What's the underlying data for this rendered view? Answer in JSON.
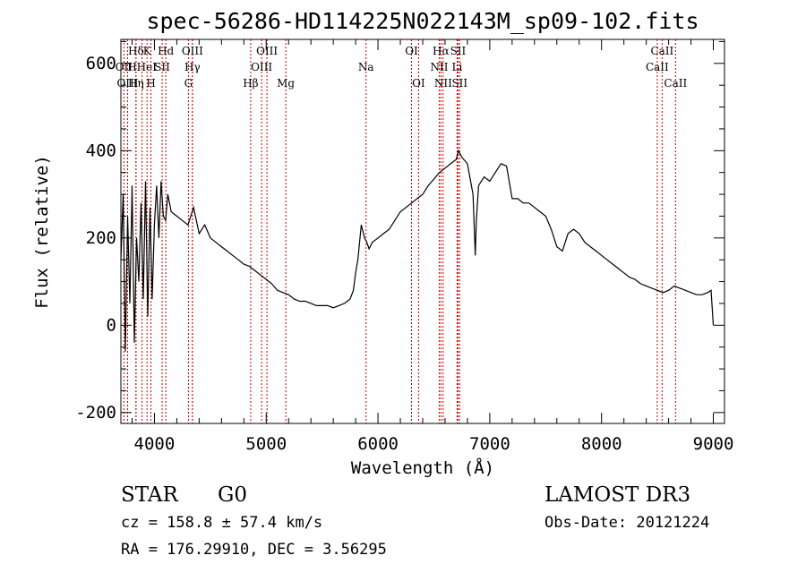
{
  "chart_data": {
    "type": "line",
    "title": "spec-56286-HD114225N022143M_sp09-102.fits",
    "xlabel": "Wavelength (Å)",
    "ylabel": "Flux (relative)",
    "xlim": [
      3700,
      9100
    ],
    "ylim": [
      -225,
      655
    ],
    "xticks": [
      4000,
      5000,
      6000,
      7000,
      8000,
      9000
    ],
    "yticks": [
      -200,
      0,
      200,
      400,
      600
    ],
    "grid": false,
    "series": [
      {
        "x": [
          3700,
          3720,
          3740,
          3760,
          3780,
          3800,
          3820,
          3840,
          3860,
          3880,
          3900,
          3920,
          3940,
          3960,
          3980,
          4000,
          4020,
          4040,
          4060,
          4080,
          4100,
          4120,
          4150,
          4200,
          4250,
          4300,
          4350,
          4400,
          4450,
          4500,
          4550,
          4600,
          4650,
          4700,
          4750,
          4800,
          4850,
          4900,
          4950,
          5000,
          5050,
          5100,
          5150,
          5200,
          5250,
          5300,
          5350,
          5400,
          5450,
          5500,
          5550,
          5600,
          5650,
          5700,
          5750,
          5780,
          5800,
          5820,
          5850,
          5880,
          5900,
          5920,
          5950,
          6000,
          6050,
          6100,
          6150,
          6200,
          6250,
          6300,
          6350,
          6400,
          6450,
          6500,
          6550,
          6600,
          6650,
          6700,
          6720,
          6750,
          6800,
          6850,
          6870,
          6880,
          6900,
          6950,
          7000,
          7050,
          7100,
          7150,
          7200,
          7250,
          7300,
          7350,
          7400,
          7450,
          7500,
          7550,
          7600,
          7650,
          7700,
          7750,
          7800,
          7850,
          7900,
          7950,
          8000,
          8050,
          8100,
          8150,
          8200,
          8250,
          8300,
          8350,
          8400,
          8450,
          8500,
          8550,
          8600,
          8650,
          8700,
          8750,
          8800,
          8850,
          8900,
          8950,
          8980,
          9000
        ],
        "y": [
          150,
          300,
          -60,
          250,
          50,
          320,
          -40,
          200,
          100,
          280,
          60,
          330,
          20,
          270,
          60,
          230,
          320,
          200,
          330,
          250,
          240,
          300,
          260,
          250,
          240,
          230,
          270,
          210,
          230,
          200,
          190,
          180,
          170,
          160,
          150,
          140,
          135,
          125,
          115,
          105,
          95,
          80,
          75,
          70,
          60,
          55,
          55,
          50,
          45,
          45,
          45,
          40,
          45,
          50,
          60,
          80,
          120,
          150,
          230,
          200,
          190,
          175,
          190,
          200,
          210,
          220,
          240,
          260,
          270,
          280,
          290,
          300,
          320,
          335,
          350,
          360,
          370,
          380,
          400,
          385,
          370,
          300,
          160,
          240,
          320,
          340,
          330,
          350,
          370,
          365,
          290,
          290,
          280,
          280,
          270,
          260,
          250,
          220,
          180,
          170,
          210,
          220,
          210,
          190,
          180,
          170,
          160,
          150,
          140,
          130,
          120,
          110,
          105,
          95,
          90,
          85,
          80,
          75,
          80,
          90,
          85,
          80,
          75,
          70,
          70,
          75,
          80,
          0
        ]
      }
    ],
    "line_markers": [
      {
        "label": "Hδ",
        "wavelength": 3835,
        "row": 0
      },
      {
        "label": "OII",
        "wavelength": 3727,
        "row": 1
      },
      {
        "label": "OIII",
        "wavelength": 3760,
        "row": 2
      },
      {
        "label": "HHeI",
        "wavelength": 3889,
        "row": 1
      },
      {
        "label": "Hη",
        "wavelength": 3835,
        "row": 2
      },
      {
        "label": "K",
        "wavelength": 3934,
        "row": 0
      },
      {
        "label": "SII",
        "wavelength": 4069,
        "row": 1
      },
      {
        "label": "H",
        "wavelength": 3969,
        "row": 2
      },
      {
        "label": "Hd",
        "wavelength": 4102,
        "row": 0
      },
      {
        "label": "OIII",
        "wavelength": 4340,
        "row": 0
      },
      {
        "label": "Hγ",
        "wavelength": 4340,
        "row": 1
      },
      {
        "label": "G",
        "wavelength": 4304,
        "row": 2
      },
      {
        "label": "OIII",
        "wavelength": 5007,
        "row": 0
      },
      {
        "label": "OIII",
        "wavelength": 4959,
        "row": 1
      },
      {
        "label": "Hβ",
        "wavelength": 4861,
        "row": 2
      },
      {
        "label": "Mg",
        "wavelength": 5175,
        "row": 2
      },
      {
        "label": "Na",
        "wavelength": 5893,
        "row": 1
      },
      {
        "label": "OI",
        "wavelength": 6300,
        "row": 0
      },
      {
        "label": "OI",
        "wavelength": 6363,
        "row": 2
      },
      {
        "label": "Hα",
        "wavelength": 6563,
        "row": 0
      },
      {
        "label": "SII",
        "wavelength": 6716,
        "row": 0
      },
      {
        "label": "NII",
        "wavelength": 6548,
        "row": 1
      },
      {
        "label": "Li",
        "wavelength": 6708,
        "row": 1
      },
      {
        "label": "NII",
        "wavelength": 6583,
        "row": 2
      },
      {
        "label": "SII",
        "wavelength": 6731,
        "row": 2
      },
      {
        "label": "CaII",
        "wavelength": 8542,
        "row": 0
      },
      {
        "label": "CaII",
        "wavelength": 8498,
        "row": 1
      },
      {
        "label": "CaII",
        "wavelength": 8662,
        "row": 2
      }
    ],
    "marker_color": "#cc0000"
  },
  "info": {
    "object_class": "STAR",
    "subclass": "G0",
    "survey": "LAMOST DR3",
    "cz": "cz = 158.8 ± 57.4 km/s",
    "obs_date": "Obs-Date: 20121224",
    "coords": "RA = 176.29910, DEC =   3.56295"
  }
}
